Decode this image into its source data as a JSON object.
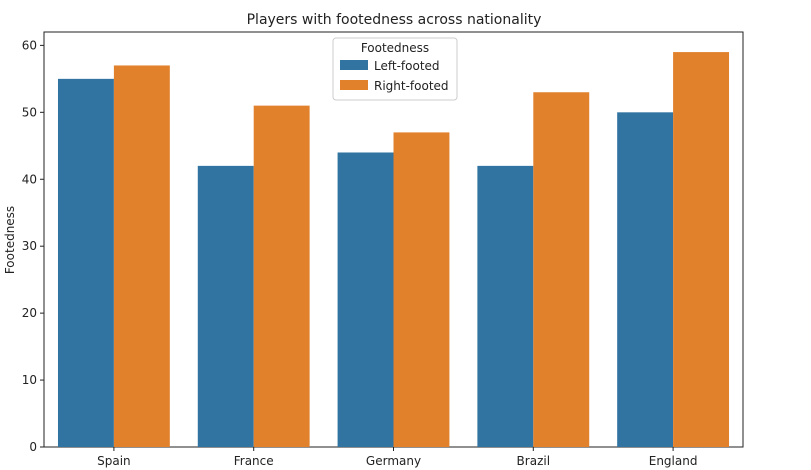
{
  "chart_data": {
    "type": "bar",
    "title": "Players with footedness across nationality",
    "xlabel": "",
    "ylabel": "Footedness",
    "categories": [
      "Spain",
      "France",
      "Germany",
      "Brazil",
      "England"
    ],
    "series": [
      {
        "name": "Left-footed",
        "values": [
          55,
          42,
          44,
          42,
          50
        ],
        "color": "#3274a1"
      },
      {
        "name": "Right-footed",
        "values": [
          57,
          51,
          47,
          53,
          59
        ],
        "color": "#e1812c"
      }
    ],
    "ylim": [
      0,
      62
    ],
    "yticks": [
      0,
      10,
      20,
      30,
      40,
      50,
      60
    ],
    "legend": {
      "title": "Footedness",
      "placement": "top-center"
    },
    "grid": false
  }
}
